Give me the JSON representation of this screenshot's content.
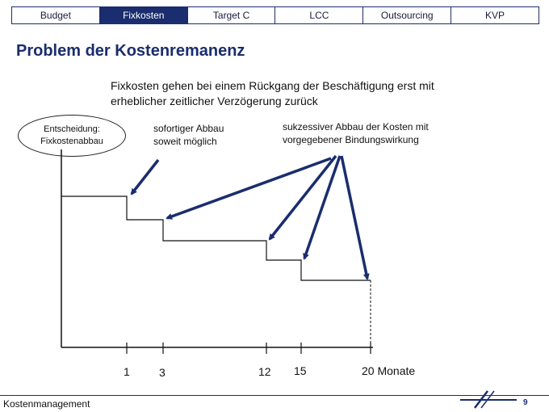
{
  "tabs": [
    {
      "label": "Budget",
      "active": false
    },
    {
      "label": "Fixkosten",
      "active": true
    },
    {
      "label": "Target C",
      "active": false
    },
    {
      "label": "LCC",
      "active": false
    },
    {
      "label": "Outsourcing",
      "active": false
    },
    {
      "label": "KVP",
      "active": false
    }
  ],
  "title": "Problem der Kostenremanenz",
  "subtitle_line1": "Fixkosten gehen bei einem Rückgang der Beschäftigung erst mit",
  "subtitle_line2": "erheblicher zeitlicher Verzögerung zurück",
  "decision_label_line1": "Entscheidung:",
  "decision_label_line2": "Fixkostenabbau",
  "label_immediate_line1": "sofortiger Abbau",
  "label_immediate_line2": "soweit möglich",
  "label_gradual_line1": "sukzessiver Abbau der Kosten mit",
  "label_gradual_line2": "vorgegebener Bindungswirkung",
  "x_ticks": [
    "1",
    "3",
    "12",
    "15",
    "20 Monate"
  ],
  "footer_left": "Kostenmanagement",
  "page_number": "9",
  "colors": {
    "accent": "#1a2d6e"
  }
}
